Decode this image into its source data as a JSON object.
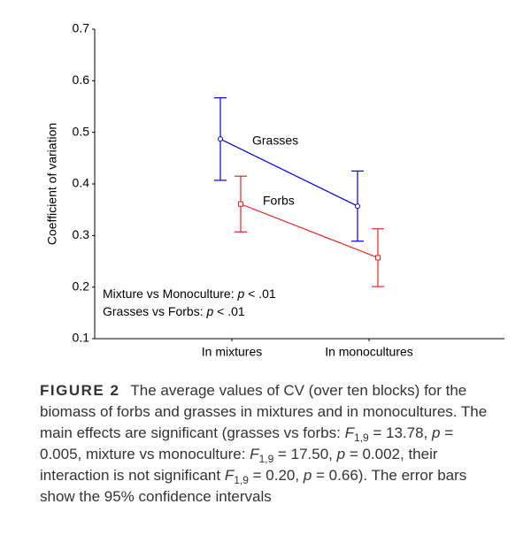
{
  "chart_data": {
    "type": "line",
    "y_label": "Coefficient of variation",
    "categories": [
      "In mixtures",
      "In monocultures"
    ],
    "series": [
      {
        "name": "Grasses",
        "color": "#0000ee",
        "marker": "circle",
        "values": [
          0.487,
          0.357
        ],
        "errors": [
          0.08,
          0.068
        ]
      },
      {
        "name": "Forbs",
        "color": "#ee2222",
        "marker": "square",
        "values": [
          0.361,
          0.257
        ],
        "errors": [
          0.054,
          0.056
        ]
      }
    ],
    "ylim": [
      0.1,
      0.7
    ],
    "yticks": [
      0.1,
      0.2,
      0.3,
      0.4,
      0.5,
      0.6,
      0.7
    ],
    "annotations": [
      [
        {
          "text": "Mixture vs Monoculture: ",
          "style": "normal"
        },
        {
          "text": "p",
          "style": "italic"
        },
        {
          "text": " < .01",
          "style": "normal"
        }
      ],
      [
        {
          "text": "Grasses vs Forbs: ",
          "style": "normal"
        },
        {
          "text": "p",
          "style": "italic"
        },
        {
          "text": " < .01",
          "style": "normal"
        }
      ]
    ]
  },
  "caption": {
    "label": "FIGURE 2",
    "runs": [
      {
        "text": "The average values of CV (over ten blocks) for the biomass of forbs and grasses in mixtures and in monocultures. The main effects are significant (grasses vs forbs: ",
        "style": "normal"
      },
      {
        "text": "F",
        "style": "italic"
      },
      {
        "text": "1,9",
        "style": "sub"
      },
      {
        "text": " = 13.78, ",
        "style": "normal"
      },
      {
        "text": "p",
        "style": "italic"
      },
      {
        "text": " = 0.005, mixture vs monoculture: ",
        "style": "normal"
      },
      {
        "text": "F",
        "style": "italic"
      },
      {
        "text": "1,9",
        "style": "sub"
      },
      {
        "text": " = 17.50, ",
        "style": "normal"
      },
      {
        "text": "p",
        "style": "italic"
      },
      {
        "text": " = 0.002, their interaction is not significant ",
        "style": "normal"
      },
      {
        "text": "F",
        "style": "italic"
      },
      {
        "text": "1,9",
        "style": "sub"
      },
      {
        "text": " = 0.20, ",
        "style": "normal"
      },
      {
        "text": "p",
        "style": "italic"
      },
      {
        "text": " = 0.66). The error bars show the 95% confidence intervals",
        "style": "normal"
      }
    ]
  }
}
